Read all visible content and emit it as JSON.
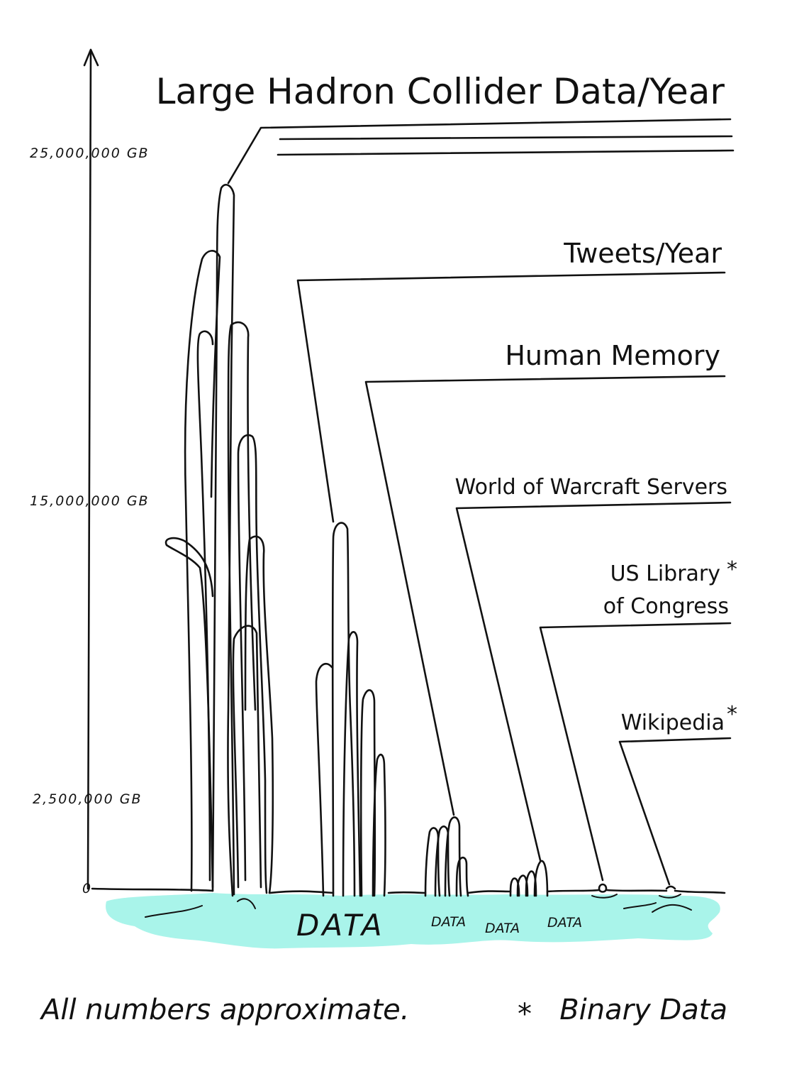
{
  "colors": {
    "ink": "#111111",
    "data_fill": "#a9f4ea",
    "background": "#ffffff"
  },
  "axis": {
    "ticks": [
      {
        "label": "25,000,000 GB",
        "value": 25000000
      },
      {
        "label": "15,000,000 GB",
        "value": 15000000
      },
      {
        "label": "2,500,000 GB",
        "value": 2500000
      },
      {
        "label": "0",
        "value": 0
      }
    ]
  },
  "sources": [
    {
      "label": "Large Hadron Collider Data/Year"
    },
    {
      "label": "Tweets/Year"
    },
    {
      "label": "Human Memory"
    },
    {
      "label": "World of Warcraft Servers"
    },
    {
      "label_line1": "US Library",
      "label_line2": "of Congress",
      "asterisk": "*"
    },
    {
      "label": "Wikipedia",
      "asterisk": "*"
    }
  ],
  "pool": {
    "labels": [
      "DATA",
      "DATA",
      "DATA",
      "DATA"
    ]
  },
  "footer": {
    "note": "All numbers approximate.",
    "legend_symbol": "*",
    "legend_text": "Binary Data"
  }
}
